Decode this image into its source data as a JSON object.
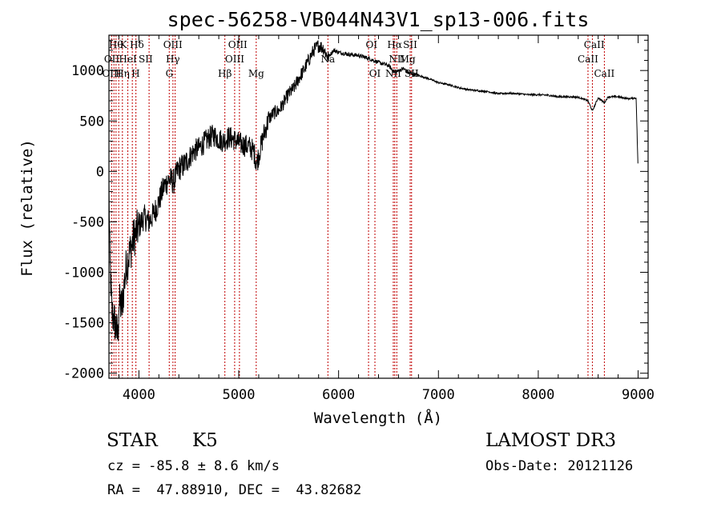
{
  "chart_data": {
    "type": "line",
    "title": "spec-56258-VB044N43V1_sp13-006.fits",
    "xlabel": "Wavelength (Å)",
    "ylabel": "Flux (relative)",
    "xlim": [
      3700,
      9100
    ],
    "ylim": [
      -2050,
      1350
    ],
    "xticks": [
      4000,
      5000,
      6000,
      7000,
      8000,
      9000
    ],
    "yticks": [
      -2000,
      -1500,
      -1000,
      -500,
      0,
      500,
      1000
    ],
    "spectrum_points": [
      [
        3700,
        -150
      ],
      [
        3710,
        -900
      ],
      [
        3730,
        -1400
      ],
      [
        3760,
        -1500
      ],
      [
        3790,
        -1650
      ],
      [
        3800,
        -1300
      ],
      [
        3830,
        -1350
      ],
      [
        3860,
        -1050
      ],
      [
        3880,
        -900
      ],
      [
        3910,
        -800
      ],
      [
        3950,
        -650
      ],
      [
        4000,
        -550
      ],
      [
        4050,
        -450
      ],
      [
        4100,
        -500
      ],
      [
        4150,
        -420
      ],
      [
        4200,
        -300
      ],
      [
        4250,
        -150
      ],
      [
        4300,
        -80
      ],
      [
        4350,
        -100
      ],
      [
        4400,
        30
      ],
      [
        4450,
        60
      ],
      [
        4500,
        130
      ],
      [
        4550,
        200
      ],
      [
        4600,
        230
      ],
      [
        4650,
        280
      ],
      [
        4700,
        330
      ],
      [
        4750,
        360
      ],
      [
        4800,
        320
      ],
      [
        4850,
        300
      ],
      [
        4900,
        340
      ],
      [
        4950,
        320
      ],
      [
        5000,
        280
      ],
      [
        5050,
        260
      ],
      [
        5100,
        250
      ],
      [
        5150,
        200
      ],
      [
        5180,
        80
      ],
      [
        5200,
        160
      ],
      [
        5250,
        360
      ],
      [
        5300,
        520
      ],
      [
        5350,
        580
      ],
      [
        5400,
        600
      ],
      [
        5450,
        680
      ],
      [
        5500,
        770
      ],
      [
        5550,
        820
      ],
      [
        5600,
        920
      ],
      [
        5650,
        1000
      ],
      [
        5700,
        1100
      ],
      [
        5750,
        1200
      ],
      [
        5800,
        1250
      ],
      [
        5850,
        1220
      ],
      [
        5893,
        1130
      ],
      [
        5950,
        1200
      ],
      [
        6000,
        1180
      ],
      [
        6100,
        1160
      ],
      [
        6200,
        1150
      ],
      [
        6300,
        1120
      ],
      [
        6400,
        1080
      ],
      [
        6500,
        1050
      ],
      [
        6563,
        980
      ],
      [
        6650,
        1020
      ],
      [
        6700,
        980
      ],
      [
        6800,
        950
      ],
      [
        6900,
        920
      ],
      [
        7000,
        880
      ],
      [
        7100,
        860
      ],
      [
        7200,
        830
      ],
      [
        7300,
        810
      ],
      [
        7400,
        800
      ],
      [
        7500,
        790
      ],
      [
        7600,
        770
      ],
      [
        7700,
        775
      ],
      [
        7800,
        770
      ],
      [
        7900,
        760
      ],
      [
        8000,
        760
      ],
      [
        8100,
        755
      ],
      [
        8200,
        740
      ],
      [
        8300,
        740
      ],
      [
        8400,
        735
      ],
      [
        8498,
        700
      ],
      [
        8542,
        600
      ],
      [
        8600,
        730
      ],
      [
        8662,
        680
      ],
      [
        8700,
        740
      ],
      [
        8800,
        740
      ],
      [
        8900,
        720
      ],
      [
        8980,
        730
      ],
      [
        9000,
        0
      ]
    ],
    "line_groups": [
      {
        "labels": [
          "Hθ",
          "OII",
          "OIII"
        ],
        "x": 3750
      },
      {
        "labels": [
          "K",
          "HeI",
          "Hη"
        ],
        "x": 3889
      },
      {
        "labels": [
          "Hδ",
          "SII",
          "H"
        ],
        "x": 4000
      },
      {
        "labels": [
          "OIII",
          "Hγ",
          "G"
        ],
        "x": 4340
      },
      {
        "labels": [
          "OIII",
          "OIII",
          "Hβ"
        ],
        "x": 4960
      },
      {
        "labels": [
          "Mg"
        ],
        "x": 5170
      },
      {
        "labels": [
          "Na"
        ],
        "x": 5893
      },
      {
        "labels": [
          "OI",
          "OI"
        ],
        "x": 6330
      },
      {
        "labels": [
          "Hα",
          "NII",
          "NII"
        ],
        "x": 6570
      },
      {
        "labels": [
          "SII",
          "Mg",
          "SII"
        ],
        "x": 6700
      },
      {
        "labels": [
          "CaII",
          "CaII",
          "CaII"
        ],
        "x": 8542
      }
    ],
    "line_label_rows": [
      {
        "text": "Hθ",
        "x": 3770,
        "row": 0
      },
      {
        "text": "K",
        "x": 3845,
        "row": 0
      },
      {
        "text": "Hδ",
        "x": 3980,
        "row": 0
      },
      {
        "text": "OIII",
        "x": 4340,
        "row": 0
      },
      {
        "text": "OIII",
        "x": 4990,
        "row": 0
      },
      {
        "text": "OI",
        "x": 6330,
        "row": 0
      },
      {
        "text": "Hα",
        "x": 6562,
        "row": 0
      },
      {
        "text": "SII",
        "x": 6717,
        "row": 0
      },
      {
        "text": "CaII",
        "x": 8560,
        "row": 0
      },
      {
        "text": "OII",
        "x": 3728,
        "row": 1
      },
      {
        "text": "HeI",
        "x": 3889,
        "row": 1
      },
      {
        "text": "SII",
        "x": 4068,
        "row": 1
      },
      {
        "text": "Hγ",
        "x": 4340,
        "row": 1
      },
      {
        "text": "OIII",
        "x": 4959,
        "row": 1
      },
      {
        "text": "Na",
        "x": 5893,
        "row": 1
      },
      {
        "text": "NII",
        "x": 6583,
        "row": 1
      },
      {
        "text": "Mg",
        "x": 6690,
        "row": 1
      },
      {
        "text": "CaII",
        "x": 8498,
        "row": 1
      },
      {
        "text": "OIII",
        "x": 3728,
        "row": 2
      },
      {
        "text": "Hη",
        "x": 3836,
        "row": 2
      },
      {
        "text": "H",
        "x": 3968,
        "row": 2
      },
      {
        "text": "G",
        "x": 4305,
        "row": 2
      },
      {
        "text": "Hβ",
        "x": 4861,
        "row": 2
      },
      {
        "text": "Mg",
        "x": 5175,
        "row": 2
      },
      {
        "text": "OI",
        "x": 6364,
        "row": 2
      },
      {
        "text": "NII",
        "x": 6548,
        "row": 2
      },
      {
        "text": "SII",
        "x": 6731,
        "row": 2
      },
      {
        "text": "CaII",
        "x": 8662,
        "row": 2
      }
    ],
    "vertical_lines": [
      3727,
      3750,
      3771,
      3798,
      3835,
      3889,
      3934,
      3970,
      4102,
      4304,
      4341,
      4363,
      4861,
      4959,
      5007,
      5175,
      5893,
      6300,
      6364,
      6548,
      6563,
      6583,
      6717,
      6731,
      8498,
      8542,
      8662
    ]
  },
  "info": {
    "object_class": "STAR",
    "subclass": "K5",
    "survey": "LAMOST DR3",
    "cz": "cz = -85.8 ± 8.6 km/s",
    "obs_date": "Obs-Date: 20121126",
    "coords": "RA =  47.88910, DEC =  43.82682"
  }
}
